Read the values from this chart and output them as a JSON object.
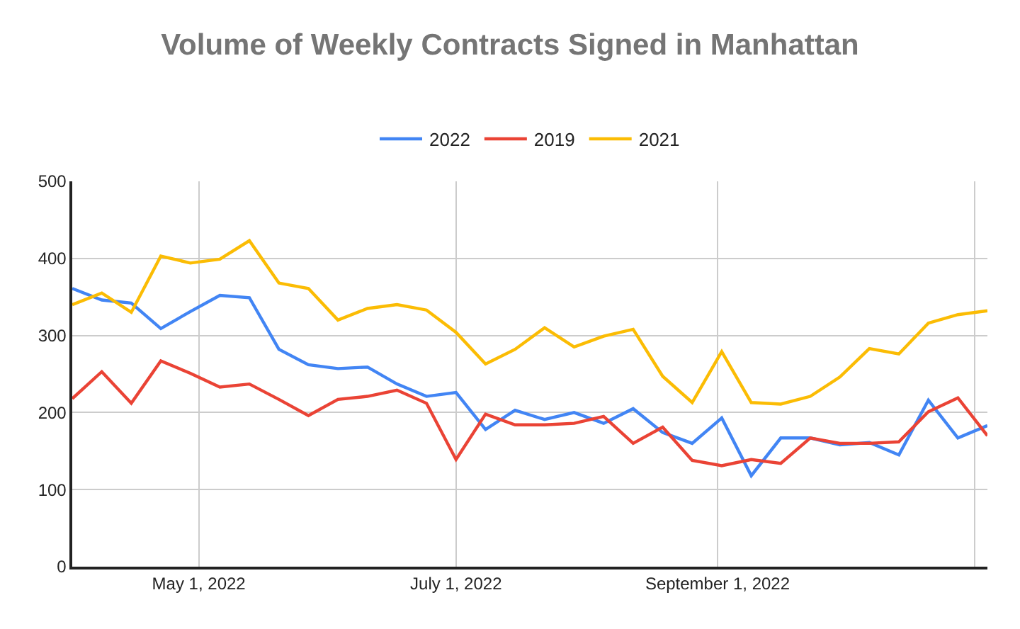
{
  "chart_data": {
    "type": "line",
    "title": "Volume of Weekly Contracts Signed in Manhattan",
    "x": [
      "2022-04-01",
      "2022-04-08",
      "2022-04-15",
      "2022-04-22",
      "2022-04-29",
      "2022-05-06",
      "2022-05-13",
      "2022-05-20",
      "2022-05-27",
      "2022-06-03",
      "2022-06-10",
      "2022-06-17",
      "2022-06-24",
      "2022-07-01",
      "2022-07-08",
      "2022-07-15",
      "2022-07-22",
      "2022-07-29",
      "2022-08-05",
      "2022-08-12",
      "2022-08-19",
      "2022-08-26",
      "2022-09-02",
      "2022-09-09",
      "2022-09-16",
      "2022-09-23",
      "2022-09-30",
      "2022-10-07",
      "2022-10-14",
      "2022-10-21",
      "2022-10-28",
      "2022-11-04"
    ],
    "series": [
      {
        "name": "2022",
        "color": "#4285f4",
        "values": [
          361,
          346,
          342,
          309,
          331,
          352,
          349,
          282,
          262,
          257,
          259,
          237,
          221,
          226,
          178,
          203,
          191,
          200,
          186,
          205,
          174,
          160,
          193,
          118,
          167,
          167,
          158,
          161,
          145,
          216,
          167,
          183
        ]
      },
      {
        "name": "2019",
        "color": "#ea4335",
        "values": [
          218,
          253,
          212,
          267,
          251,
          233,
          237,
          217,
          196,
          217,
          221,
          229,
          212,
          139,
          198,
          184,
          184,
          186,
          195,
          160,
          181,
          138,
          131,
          139,
          134,
          167,
          160,
          160,
          162,
          201,
          219,
          170
        ]
      },
      {
        "name": "2021",
        "color": "#fbbc04",
        "values": [
          340,
          355,
          330,
          403,
          394,
          399,
          423,
          368,
          361,
          320,
          335,
          340,
          333,
          304,
          263,
          282,
          310,
          285,
          299,
          308,
          247,
          213,
          279,
          213,
          211,
          221,
          246,
          283,
          276,
          316,
          327,
          332
        ]
      }
    ],
    "xlim": [
      "2022-04-01",
      "2022-11-04"
    ],
    "xticks": [
      {
        "value": "2022-05-01",
        "label": "May 1, 2022"
      },
      {
        "value": "2022-07-01",
        "label": "July 1, 2022"
      },
      {
        "value": "2022-09-01",
        "label": "September 1, 2022"
      },
      {
        "value": "2022-11-01",
        "label": null
      }
    ],
    "ylim": [
      0,
      500
    ],
    "yticks": [
      0,
      100,
      200,
      300,
      400,
      500
    ],
    "grid": true,
    "legend": "top"
  }
}
